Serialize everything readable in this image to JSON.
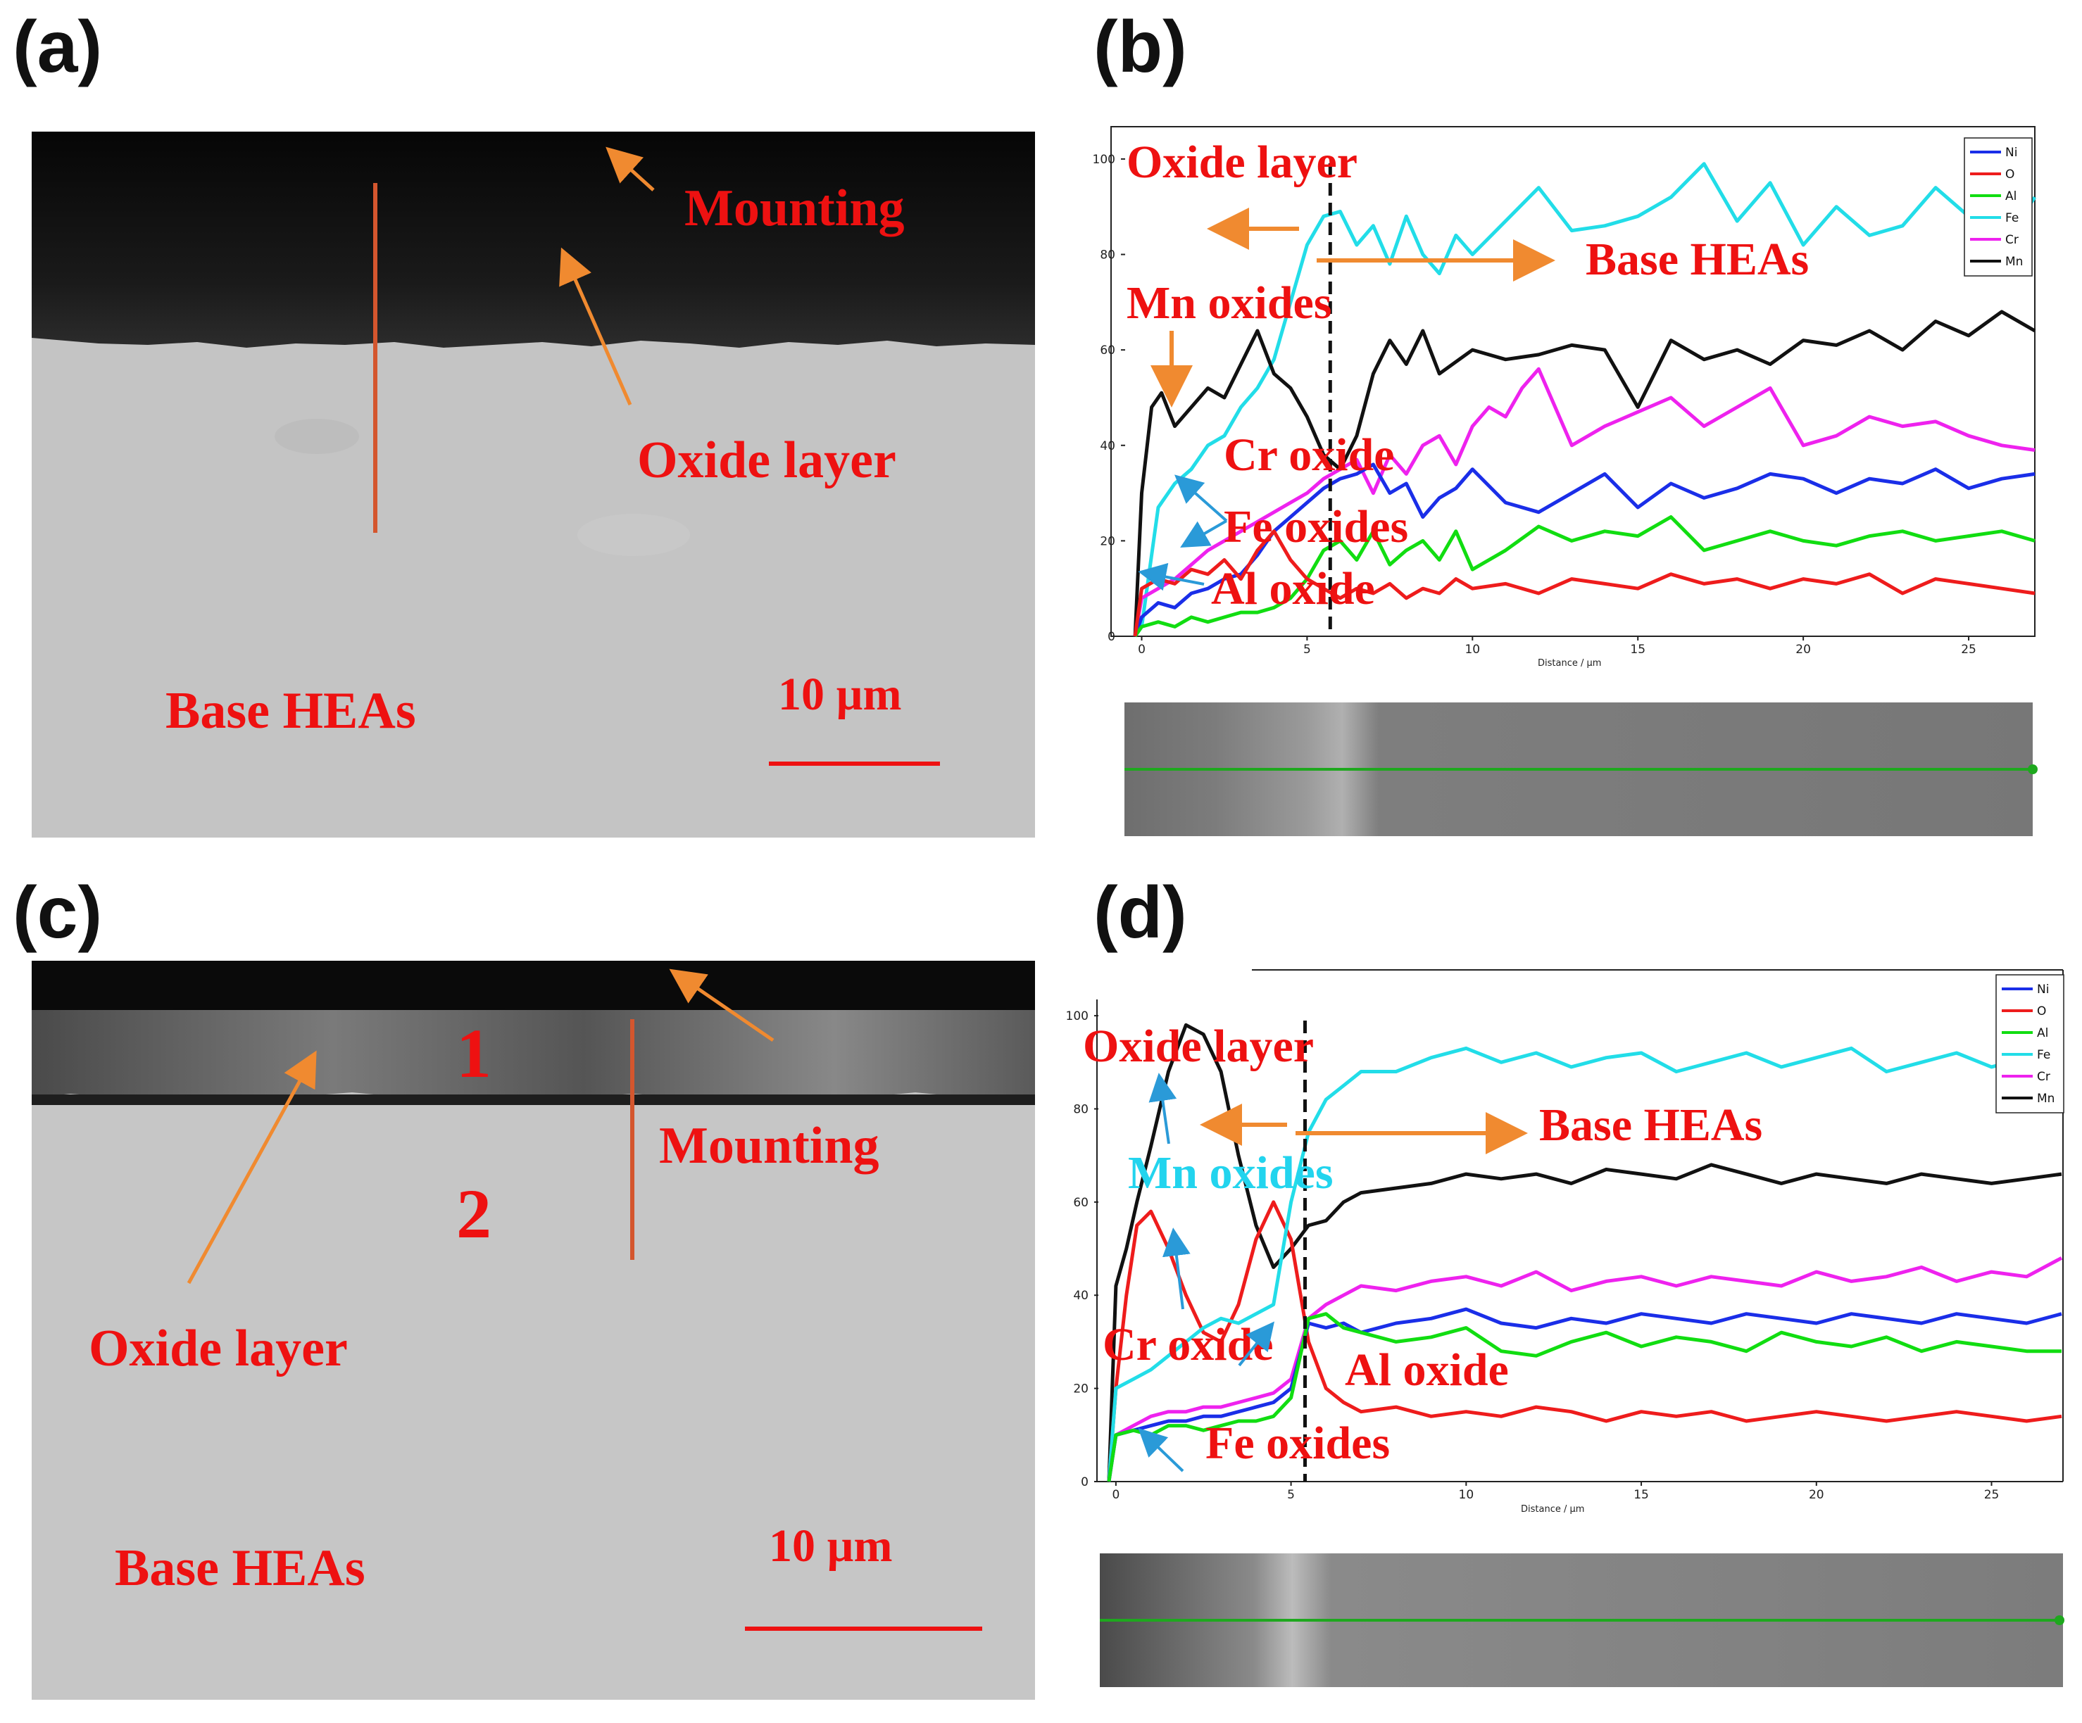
{
  "panels": {
    "a": {
      "label": "(a)",
      "annotations": {
        "mounting": "Mounting",
        "oxide_layer": "Oxide layer",
        "base": "Base HEAs"
      },
      "scale_bar": "10 µm"
    },
    "b": {
      "label": "(b)"
    },
    "c": {
      "label": "(c)",
      "annotations": {
        "mounting": "Mounting",
        "oxide_layer": "Oxide layer",
        "base": "Base HEAs",
        "region1": "1",
        "region2": "2"
      },
      "scale_bar": "10 µm"
    },
    "d": {
      "label": "(d)"
    }
  },
  "colors": {
    "Ni": "#1a2ee8",
    "O": "#ee1c1c",
    "Al": "#11dd11",
    "Fe": "#22dde8",
    "Cr": "#ee22ee",
    "Mn": "#111111",
    "annotation": "#ee1111",
    "arrow": "#f08a30",
    "arrow_blue": "#2a9ad8"
  },
  "chart_data": [
    {
      "id": "b",
      "type": "line",
      "xlabel": "Distance / µm",
      "ylabel": "",
      "xlim": [
        -0.5,
        27
      ],
      "ylim": [
        0,
        105
      ],
      "xticks": [
        0,
        5,
        10,
        15,
        20,
        25
      ],
      "yticks": [
        0,
        20,
        40,
        60,
        80,
        100
      ],
      "legend": [
        "Ni",
        "O",
        "Al",
        "Fe",
        "Cr",
        "Mn"
      ],
      "interface_x": 5.7,
      "annotations": {
        "oxide_layer": "Oxide layer",
        "base": "Base HEAs",
        "mn": "Mn oxides",
        "cr": "Cr oxide",
        "fe": "Fe oxides",
        "al": "Al oxide"
      },
      "series": [
        {
          "name": "Fe",
          "x": [
            -0.2,
            0,
            0.5,
            1,
            1.5,
            2,
            2.5,
            3,
            3.5,
            4,
            4.5,
            5,
            5.5,
            6,
            6.5,
            7,
            7.5,
            8,
            8.5,
            9,
            9.5,
            10,
            11,
            12,
            13,
            14,
            15,
            16,
            17,
            18,
            19,
            20,
            21,
            22,
            23,
            24,
            25,
            26,
            27
          ],
          "y": [
            0,
            2,
            27,
            32,
            35,
            40,
            42,
            48,
            52,
            58,
            70,
            82,
            88,
            89,
            82,
            86,
            78,
            88,
            80,
            76,
            84,
            80,
            87,
            94,
            85,
            86,
            88,
            92,
            99,
            87,
            95,
            82,
            90,
            84,
            86,
            94,
            88,
            82,
            92
          ]
        },
        {
          "name": "Mn",
          "x": [
            -0.2,
            0,
            0.3,
            0.6,
            1,
            1.5,
            2,
            2.5,
            3,
            3.5,
            4,
            4.5,
            5,
            5.5,
            6,
            6.5,
            7,
            7.5,
            8,
            8.5,
            9,
            10,
            11,
            12,
            13,
            14,
            15,
            16,
            17,
            18,
            19,
            20,
            21,
            22,
            23,
            24,
            25,
            26,
            27
          ],
          "y": [
            0,
            30,
            48,
            51,
            44,
            48,
            52,
            50,
            57,
            64,
            55,
            52,
            46,
            38,
            35,
            42,
            55,
            62,
            57,
            64,
            55,
            60,
            58,
            59,
            61,
            60,
            48,
            62,
            58,
            60,
            57,
            62,
            61,
            64,
            60,
            66,
            63,
            68,
            64
          ]
        },
        {
          "name": "Cr",
          "x": [
            -0.2,
            0,
            0.5,
            1,
            1.5,
            2,
            2.5,
            3,
            3.5,
            4,
            4.5,
            5,
            5.5,
            6,
            6.5,
            7,
            7.5,
            8,
            8.5,
            9,
            9.5,
            10,
            10.5,
            11,
            11.5,
            12,
            13,
            14,
            15,
            16,
            17,
            18,
            19,
            20,
            21,
            22,
            23,
            24,
            25,
            26,
            27
          ],
          "y": [
            0,
            8,
            10,
            12,
            15,
            18,
            20,
            22,
            24,
            26,
            28,
            30,
            33,
            35,
            37,
            30,
            38,
            34,
            40,
            42,
            36,
            44,
            48,
            46,
            52,
            56,
            40,
            44,
            47,
            50,
            44,
            48,
            52,
            40,
            42,
            46,
            44,
            45,
            42,
            40,
            39
          ]
        },
        {
          "name": "Ni",
          "x": [
            -0.2,
            0,
            0.5,
            1,
            1.5,
            2,
            2.5,
            3,
            3.5,
            4,
            4.5,
            5,
            5.5,
            6,
            6.5,
            7,
            7.5,
            8,
            8.5,
            9,
            9.5,
            10,
            11,
            12,
            13,
            14,
            15,
            16,
            17,
            18,
            19,
            20,
            21,
            22,
            23,
            24,
            25,
            26,
            27
          ],
          "y": [
            0,
            4,
            7,
            6,
            9,
            10,
            12,
            13,
            17,
            22,
            25,
            28,
            31,
            33,
            34,
            36,
            30,
            32,
            25,
            29,
            31,
            35,
            28,
            26,
            30,
            34,
            27,
            32,
            29,
            31,
            34,
            33,
            30,
            33,
            32,
            35,
            31,
            33,
            34
          ]
        },
        {
          "name": "Al",
          "x": [
            -0.2,
            0,
            0.5,
            1,
            1.5,
            2,
            2.5,
            3,
            3.5,
            4,
            4.5,
            5,
            5.5,
            6,
            6.5,
            7,
            7.5,
            8,
            8.5,
            9,
            9.5,
            10,
            11,
            12,
            13,
            14,
            15,
            16,
            17,
            18,
            19,
            20,
            21,
            22,
            23,
            24,
            25,
            26,
            27
          ],
          "y": [
            0,
            2,
            3,
            2,
            4,
            3,
            4,
            5,
            5,
            6,
            8,
            12,
            18,
            20,
            16,
            22,
            15,
            18,
            20,
            16,
            22,
            14,
            18,
            23,
            20,
            22,
            21,
            25,
            18,
            20,
            22,
            20,
            19,
            21,
            22,
            20,
            21,
            22,
            20
          ]
        },
        {
          "name": "O",
          "x": [
            -0.2,
            0,
            0.5,
            1,
            1.5,
            2,
            2.5,
            3,
            3.5,
            4,
            4.5,
            5,
            5.5,
            6,
            6.5,
            7,
            7.5,
            8,
            8.5,
            9,
            9.5,
            10,
            11,
            12,
            13,
            14,
            15,
            16,
            17,
            18,
            19,
            20,
            21,
            22,
            23,
            24,
            25,
            26,
            27
          ],
          "y": [
            0,
            10,
            12,
            11,
            14,
            13,
            16,
            12,
            18,
            22,
            16,
            12,
            10,
            8,
            10,
            9,
            11,
            8,
            10,
            9,
            12,
            10,
            11,
            9,
            12,
            11,
            10,
            13,
            11,
            12,
            10,
            12,
            11,
            13,
            9,
            12,
            11,
            10,
            9
          ]
        }
      ]
    },
    {
      "id": "d",
      "type": "line",
      "xlabel": "Distance / µm",
      "ylabel": "",
      "xlim": [
        -0.5,
        27
      ],
      "ylim": [
        0,
        105
      ],
      "xticks": [
        0,
        5,
        10,
        15,
        20,
        25
      ],
      "yticks": [
        0,
        20,
        40,
        60,
        80,
        100
      ],
      "legend": [
        "Ni",
        "O",
        "Al",
        "Fe",
        "Cr",
        "Mn"
      ],
      "interface_x": 5.4,
      "annotations": {
        "oxide_layer": "Oxide layer",
        "base": "Base HEAs",
        "mn": "Mn oxides",
        "cr": "Cr oxide",
        "fe": "Fe oxides",
        "al": "Al oxide"
      },
      "series": [
        {
          "name": "Mn",
          "x": [
            -0.2,
            0,
            0.3,
            0.6,
            1,
            1.5,
            2,
            2.5,
            3,
            3.5,
            4,
            4.5,
            5,
            5.5,
            6,
            6.5,
            7,
            8,
            9,
            10,
            11,
            12,
            13,
            14,
            15,
            16,
            17,
            18,
            19,
            20,
            21,
            22,
            23,
            24,
            25,
            26,
            27
          ],
          "y": [
            0,
            42,
            50,
            60,
            72,
            88,
            98,
            96,
            88,
            70,
            55,
            46,
            50,
            55,
            56,
            60,
            62,
            63,
            64,
            66,
            65,
            66,
            64,
            67,
            66,
            65,
            68,
            66,
            64,
            66,
            65,
            64,
            66,
            65,
            64,
            65,
            66
          ]
        },
        {
          "name": "O",
          "x": [
            -0.2,
            0,
            0.3,
            0.6,
            1,
            1.5,
            2,
            2.5,
            3,
            3.5,
            4,
            4.5,
            5,
            5.5,
            6,
            6.5,
            7,
            8,
            9,
            10,
            11,
            12,
            13,
            14,
            15,
            16,
            17,
            18,
            19,
            20,
            21,
            22,
            23,
            24,
            25,
            26,
            27
          ],
          "y": [
            0,
            20,
            40,
            55,
            58,
            50,
            40,
            32,
            30,
            38,
            52,
            60,
            52,
            30,
            20,
            17,
            15,
            16,
            14,
            15,
            14,
            16,
            15,
            13,
            15,
            14,
            15,
            13,
            14,
            15,
            14,
            13,
            14,
            15,
            14,
            13,
            14
          ]
        },
        {
          "name": "Fe",
          "x": [
            -0.2,
            0,
            0.5,
            1,
            1.5,
            2,
            2.5,
            3,
            3.5,
            4,
            4.5,
            5,
            5.5,
            6,
            6.5,
            7,
            8,
            9,
            10,
            11,
            12,
            13,
            14,
            15,
            16,
            17,
            18,
            19,
            20,
            21,
            22,
            23,
            24,
            25,
            26,
            27
          ],
          "y": [
            0,
            20,
            22,
            24,
            27,
            30,
            33,
            35,
            34,
            36,
            38,
            60,
            75,
            82,
            85,
            88,
            88,
            91,
            93,
            90,
            92,
            89,
            91,
            92,
            88,
            90,
            92,
            89,
            91,
            93,
            88,
            90,
            92,
            89,
            91,
            95
          ]
        },
        {
          "name": "Cr",
          "x": [
            -0.2,
            0,
            0.5,
            1,
            1.5,
            2,
            2.5,
            3,
            3.5,
            4,
            4.5,
            5,
            5.5,
            6,
            6.5,
            7,
            8,
            9,
            10,
            11,
            12,
            13,
            14,
            15,
            16,
            17,
            18,
            19,
            20,
            21,
            22,
            23,
            24,
            25,
            26,
            27
          ],
          "y": [
            0,
            10,
            12,
            14,
            15,
            15,
            16,
            16,
            17,
            18,
            19,
            22,
            35,
            38,
            40,
            42,
            41,
            43,
            44,
            42,
            45,
            41,
            43,
            44,
            42,
            44,
            43,
            42,
            45,
            43,
            44,
            46,
            43,
            45,
            44,
            48
          ]
        },
        {
          "name": "Ni",
          "x": [
            -0.2,
            0,
            0.5,
            1,
            1.5,
            2,
            2.5,
            3,
            3.5,
            4,
            4.5,
            5,
            5.5,
            6,
            6.5,
            7,
            8,
            9,
            10,
            11,
            12,
            13,
            14,
            15,
            16,
            17,
            18,
            19,
            20,
            21,
            22,
            23,
            24,
            25,
            26,
            27
          ],
          "y": [
            0,
            10,
            11,
            12,
            13,
            13,
            14,
            14,
            15,
            16,
            17,
            20,
            34,
            33,
            34,
            32,
            34,
            35,
            37,
            34,
            33,
            35,
            34,
            36,
            35,
            34,
            36,
            35,
            34,
            36,
            35,
            34,
            36,
            35,
            34,
            36
          ]
        },
        {
          "name": "Al",
          "x": [
            -0.2,
            0,
            0.5,
            1,
            1.5,
            2,
            2.5,
            3,
            3.5,
            4,
            4.5,
            5,
            5.5,
            6,
            6.5,
            7,
            8,
            9,
            10,
            11,
            12,
            13,
            14,
            15,
            16,
            17,
            18,
            19,
            20,
            21,
            22,
            23,
            24,
            25,
            26,
            27
          ],
          "y": [
            0,
            10,
            11,
            10,
            12,
            12,
            11,
            12,
            13,
            13,
            14,
            18,
            35,
            36,
            33,
            32,
            30,
            31,
            33,
            28,
            27,
            30,
            32,
            29,
            31,
            30,
            28,
            32,
            30,
            29,
            31,
            28,
            30,
            29,
            28,
            28
          ]
        }
      ]
    }
  ]
}
